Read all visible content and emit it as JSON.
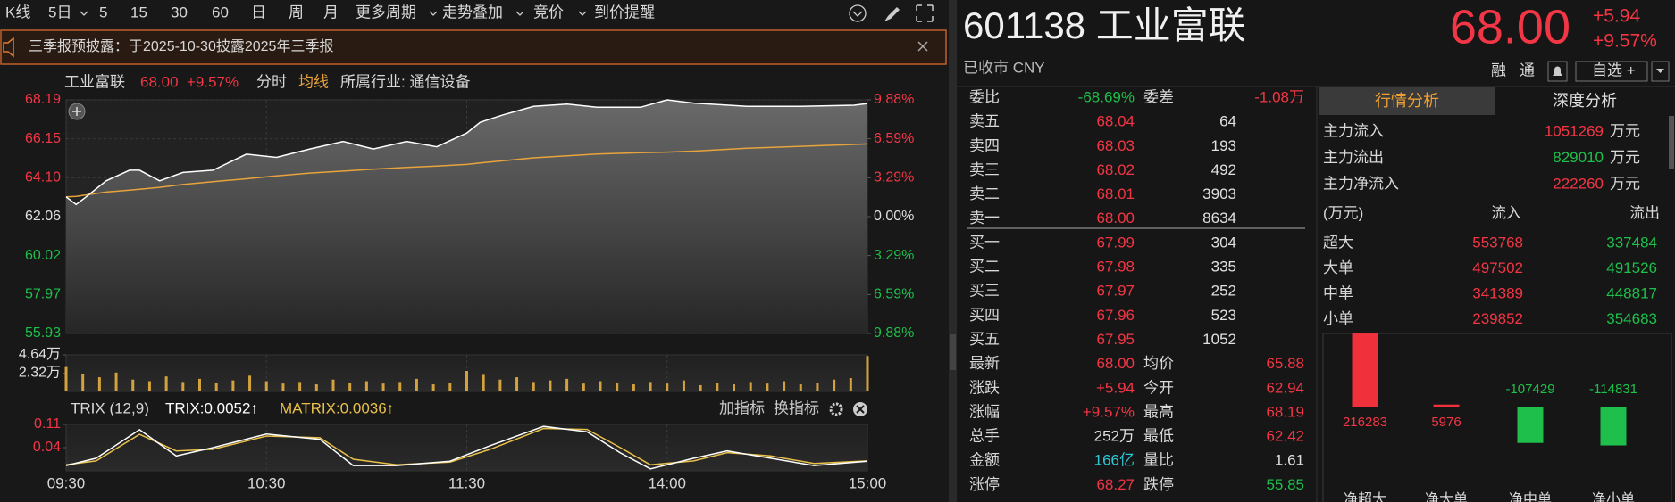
{
  "toolbar": {
    "periods": [
      "K线",
      "5日",
      "5",
      "15",
      "30",
      "60",
      "日",
      "周",
      "月",
      "更多周期",
      "走势叠加",
      "竞价",
      "到价提醒"
    ]
  },
  "notice": "三季报预披露：于2025-10-30披露2025年三季报",
  "chart_header": {
    "name": "工业富联",
    "price": "68.00",
    "change": "+9.57%",
    "tab": "分时",
    "ma": "均线",
    "industry": "所属行业: 通信设备"
  },
  "price_chart": {
    "type": "line",
    "x": [
      0,
      3,
      6,
      12,
      19,
      22,
      28,
      35,
      44,
      54,
      63,
      73,
      83,
      92,
      102,
      111,
      120,
      124,
      131,
      140,
      150,
      159,
      172,
      180,
      188,
      204,
      220,
      236,
      240
    ],
    "series": [
      {
        "color": "#ffffff",
        "values": [
          63.1,
          62.7,
          63.1,
          63.94,
          64.5,
          64.5,
          63.94,
          64.38,
          64.5,
          65.34,
          65.17,
          65.61,
          66.01,
          65.61,
          66.01,
          65.73,
          66.45,
          67.01,
          67.41,
          67.85,
          67.97,
          67.8,
          67.8,
          68.19,
          68.02,
          67.85,
          67.85,
          67.91,
          68.0
        ]
      },
      {
        "color": "#e8a33d",
        "values": [
          63.1,
          63.12,
          63.2,
          63.35,
          63.45,
          63.5,
          63.6,
          63.75,
          63.9,
          64.05,
          64.2,
          64.35,
          64.45,
          64.55,
          64.65,
          64.72,
          64.8,
          64.88,
          65.0,
          65.15,
          65.25,
          65.35,
          65.42,
          65.45,
          65.5,
          65.65,
          65.75,
          65.85,
          65.88
        ]
      }
    ],
    "xlim": [
      0,
      240
    ],
    "ylim": [
      55.93,
      68.19
    ],
    "yticks": [
      68.19,
      66.15,
      {
        "value": 64.1,
        "label": "64.10"
      },
      62.06,
      60.02,
      57.97,
      55.93
    ],
    "y2lim": [
      -9.88,
      9.88
    ],
    "y2ticks": [
      {
        "value": 9.88,
        "label": "9.88%"
      },
      {
        "value": 6.59,
        "label": "6.59%"
      },
      {
        "value": 3.29,
        "label": "3.29%"
      },
      {
        "value": 0,
        "label": "0.00%"
      },
      {
        "value": -3.29,
        "label": "3.29%"
      },
      {
        "value": -6.59,
        "label": "6.59%"
      },
      {
        "value": -9.88,
        "label": "9.88%"
      }
    ],
    "grid": true
  },
  "volume_chart": {
    "type": "bar",
    "x": [
      0,
      5,
      10,
      15,
      20,
      25,
      30,
      35,
      40,
      45,
      50,
      55,
      60,
      65,
      70,
      75,
      80,
      85,
      90,
      95,
      100,
      105,
      110,
      115,
      120,
      125,
      130,
      135,
      140,
      145,
      150,
      155,
      160,
      165,
      170,
      175,
      180,
      185,
      190,
      195,
      200,
      205,
      210,
      215,
      220,
      225,
      230,
      235,
      240
    ],
    "values": [
      3.1,
      2.2,
      1.8,
      2.4,
      1.5,
      1.3,
      1.9,
      1.2,
      1.6,
      1.1,
      1.4,
      2.0,
      1.3,
      1.0,
      1.2,
      0.9,
      1.5,
      1.1,
      1.3,
      1.0,
      1.2,
      1.6,
      0.9,
      1.1,
      2.6,
      2.1,
      1.5,
      1.8,
      1.2,
      1.4,
      1.6,
      1.0,
      1.3,
      1.1,
      0.9,
      1.2,
      1.0,
      1.4,
      0.8,
      1.1,
      0.9,
      1.2,
      1.0,
      1.3,
      0.9,
      1.1,
      1.5,
      1.7,
      4.5
    ],
    "color": "#d4a23c",
    "xlim": [
      0,
      240
    ],
    "ylim": [
      0,
      4.64
    ],
    "yticks": [
      {
        "value": 4.64,
        "label": "4.64万"
      },
      {
        "value": 2.32,
        "label": "2.32万"
      }
    ]
  },
  "indicator_chart": {
    "type": "line",
    "title": "TRIX (12,9)",
    "x": [
      0,
      9,
      22,
      33,
      44,
      60,
      76,
      86,
      99,
      115,
      127,
      143,
      156,
      166,
      175,
      188,
      198,
      211,
      224,
      240
    ],
    "series": [
      {
        "name": "TRIX:0.0052↑",
        "color": "#ffffff",
        "values": [
          -0.014,
          0.008,
          0.094,
          0.015,
          0.04,
          0.081,
          0.065,
          -0.014,
          -0.014,
          -0.001,
          0.046,
          0.104,
          0.088,
          0.024,
          -0.024,
          0.008,
          0.03,
          0.008,
          -0.014,
          -0.001
        ]
      },
      {
        "name": "MATRIX:0.0036↑",
        "color": "#e8c04a",
        "values": [
          -0.012,
          0.0,
          0.08,
          0.03,
          0.035,
          0.075,
          0.07,
          0.005,
          -0.012,
          -0.004,
          0.035,
          0.098,
          0.095,
          0.04,
          -0.012,
          0.0,
          0.025,
          0.015,
          -0.008,
          0.0
        ]
      }
    ],
    "xlim": [
      0,
      240
    ],
    "xticks": [
      {
        "value": 0,
        "label": "09:30"
      },
      {
        "value": 60,
        "label": "10:30"
      },
      {
        "value": 120,
        "label": "11:30"
      },
      {
        "value": 180,
        "label": "14:00"
      },
      {
        "value": 240,
        "label": "15:00"
      }
    ],
    "ylim": [
      -0.03,
      0.11
    ],
    "yticks": [
      0.11,
      0.04
    ],
    "buttons": [
      "加指标",
      "换指标"
    ]
  },
  "quote_header": {
    "title": "601138 工业富联",
    "price": "68.00",
    "change": "+5.94",
    "change_pct": "+9.57%",
    "status": "已收市 CNY",
    "buttons": [
      "融",
      "通",
      "自选 +"
    ]
  },
  "order_book": {
    "ratio": {
      "label": "委比",
      "value": "-68.69%"
    },
    "diff": {
      "label": "委差",
      "value": "-1.08万"
    },
    "asks": [
      [
        "卖五",
        "68.04",
        "64"
      ],
      [
        "卖四",
        "68.03",
        "193"
      ],
      [
        "卖三",
        "68.02",
        "492"
      ],
      [
        "卖二",
        "68.01",
        "3903"
      ],
      [
        "卖一",
        "68.00",
        "8634"
      ]
    ],
    "bids": [
      [
        "买一",
        "67.99",
        "304"
      ],
      [
        "买二",
        "67.98",
        "335"
      ],
      [
        "买三",
        "67.97",
        "252"
      ],
      [
        "买四",
        "67.96",
        "523"
      ],
      [
        "买五",
        "67.95",
        "1052"
      ]
    ],
    "stats": [
      [
        "最新",
        "68.00",
        "均价",
        "65.88"
      ],
      [
        "涨跌",
        "+5.94",
        "今开",
        "62.94"
      ],
      [
        "涨幅",
        "+9.57%",
        "最高",
        "68.19"
      ],
      [
        "总手",
        "252万",
        "最低",
        "62.42"
      ],
      [
        "金额",
        "166亿",
        "量比",
        "1.61"
      ],
      [
        "涨停",
        "68.27",
        "跌停",
        "55.85"
      ]
    ]
  },
  "flow": {
    "tabs": [
      "行情分析",
      "深度分析"
    ],
    "summary": [
      {
        "label": "主力流入",
        "value": "1051269",
        "unit": "万元"
      },
      {
        "label": "主力流出",
        "value": "829010",
        "unit": "万元"
      },
      {
        "label": "主力净流入",
        "value": "222260",
        "unit": "万元"
      }
    ],
    "table": {
      "header": [
        "(万元)",
        "流入",
        "流出"
      ],
      "rows": [
        [
          "超大",
          "553768",
          "337484"
        ],
        [
          "大单",
          "497502",
          "491526"
        ],
        [
          "中单",
          "341389",
          "448817"
        ],
        [
          "小单",
          "239852",
          "354683"
        ]
      ]
    },
    "net_chart": {
      "type": "bar",
      "categories": [
        "净超大",
        "净大单",
        "净中单",
        "净小单"
      ],
      "values": [
        216283,
        5976,
        -107429,
        -114831
      ],
      "ylim": [
        -260000,
        220000
      ]
    }
  }
}
